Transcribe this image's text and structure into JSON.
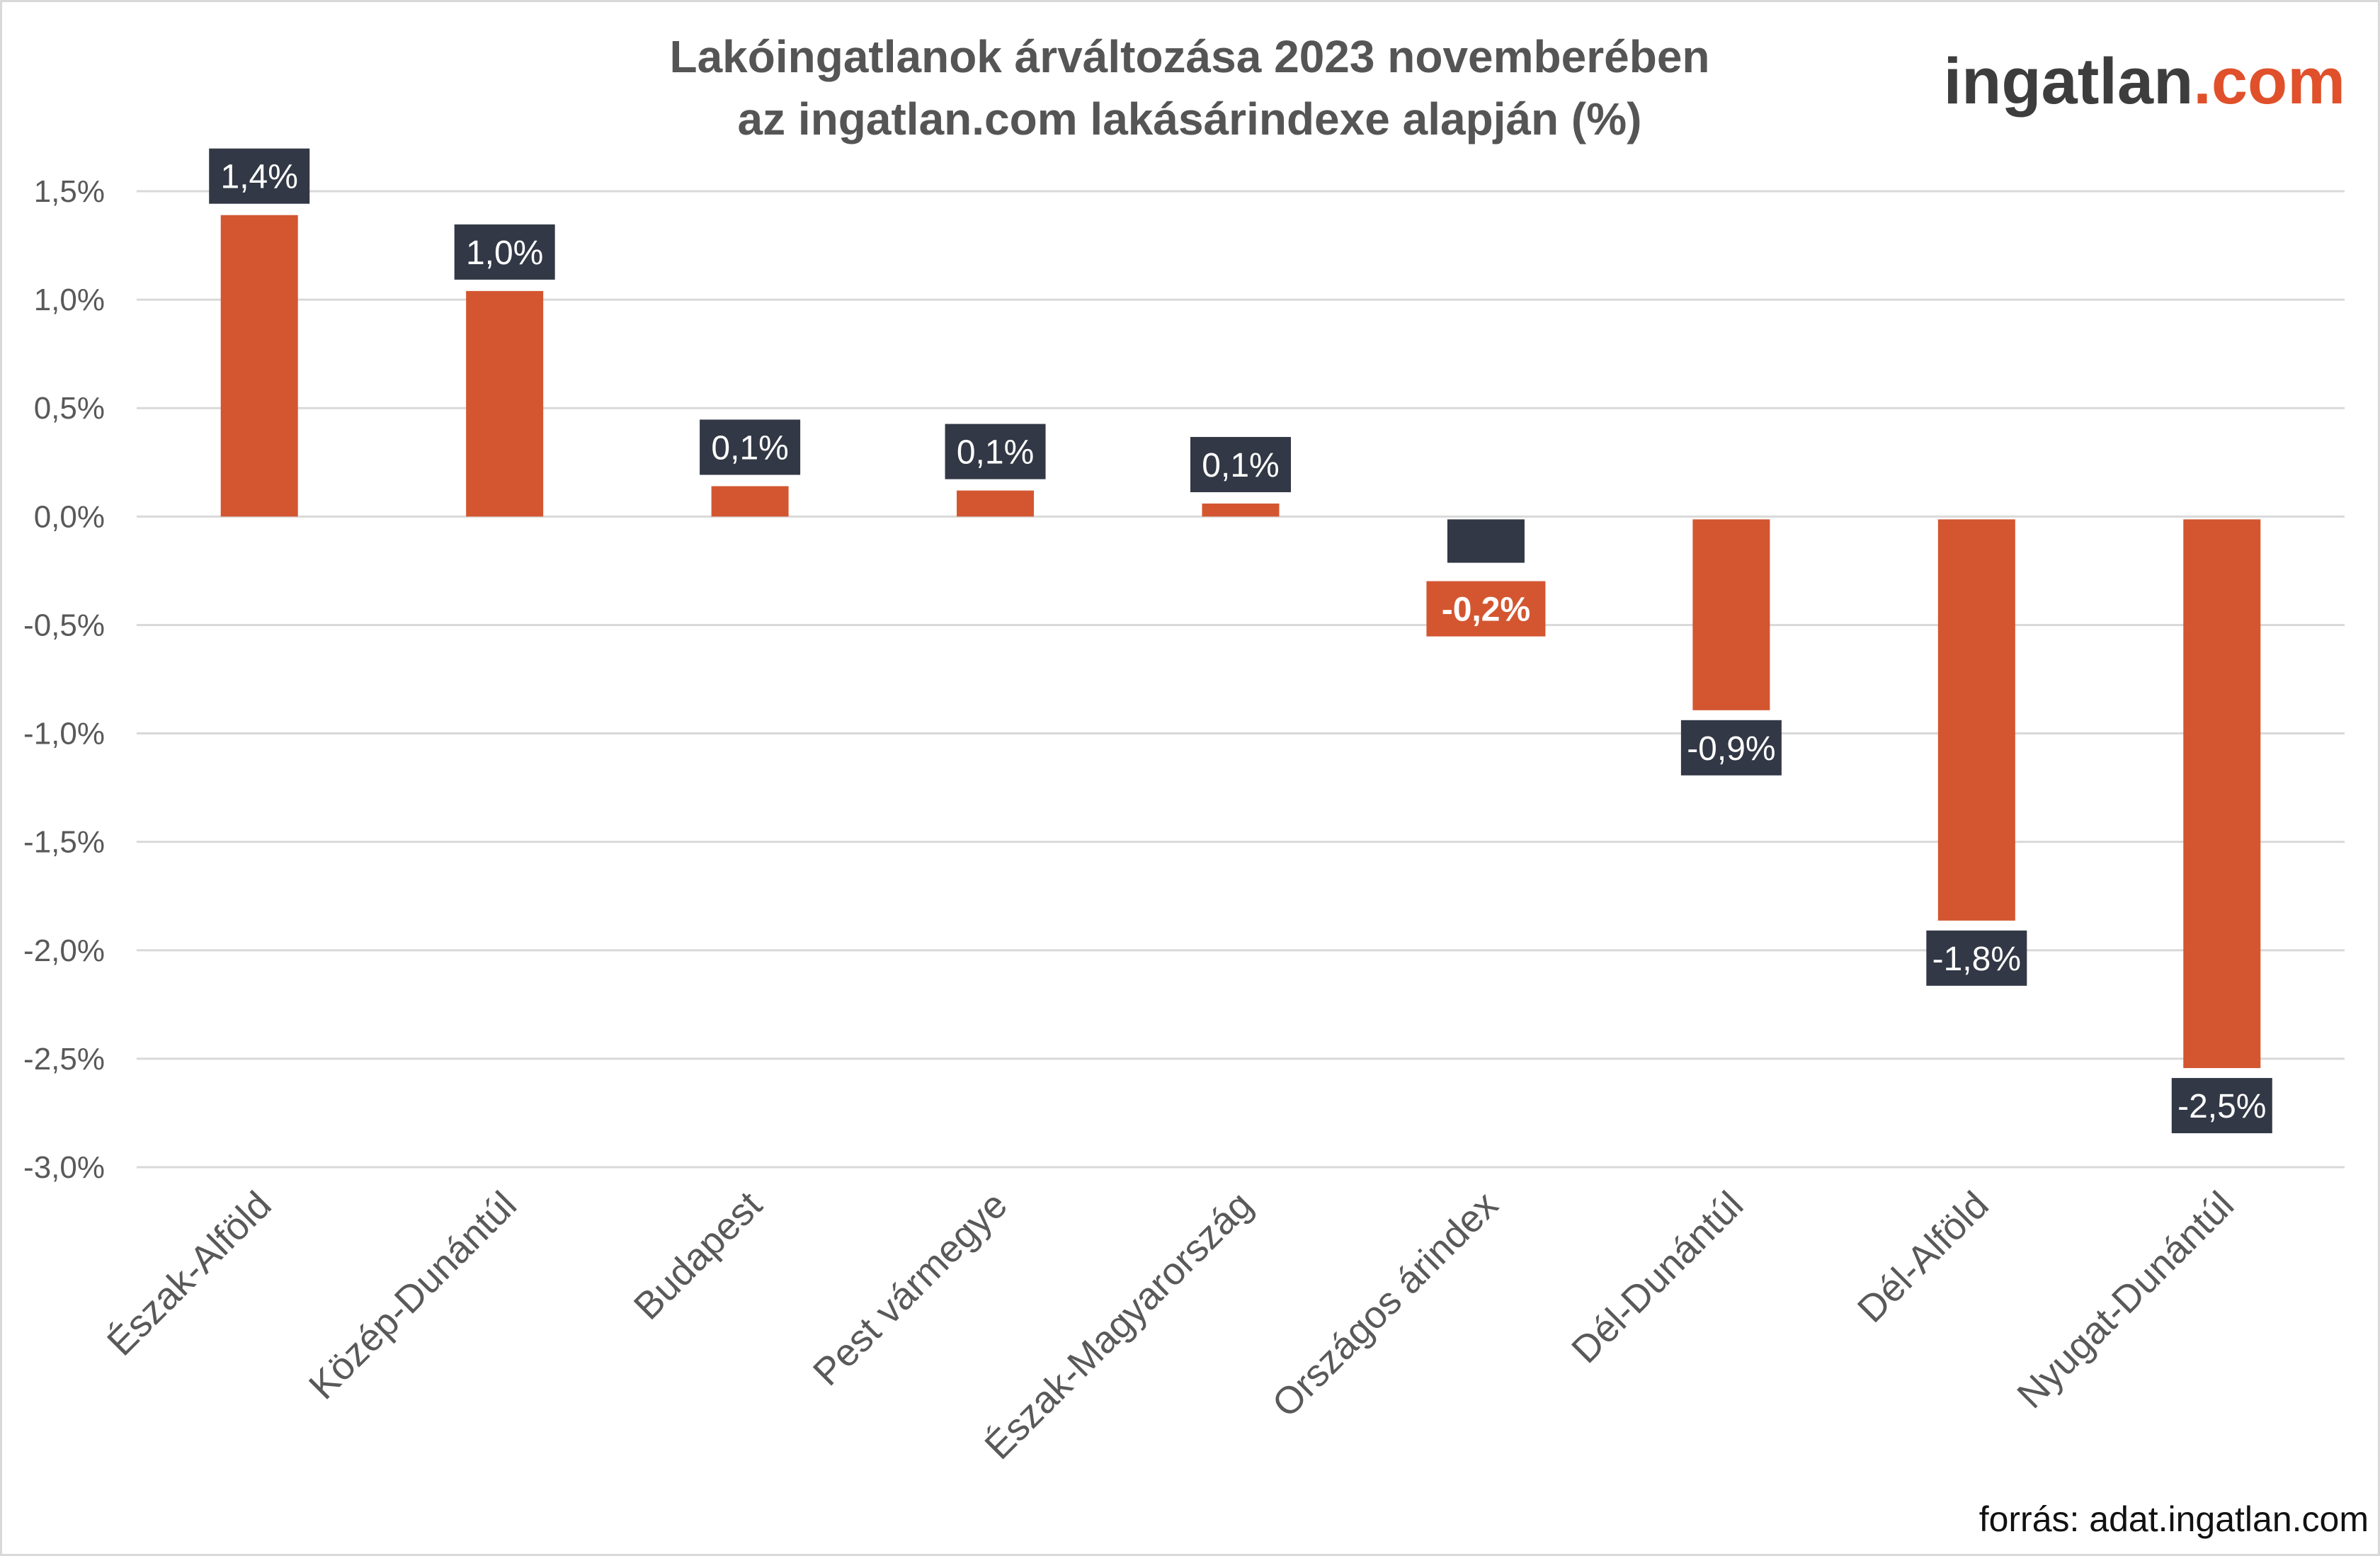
{
  "chart_data": {
    "type": "bar",
    "title": [
      "Lakóingatlanok árváltozása 2023 novemberében",
      "az ingatlan.com lakásárindexe alapján (%)"
    ],
    "xlabel": "",
    "ylabel": "",
    "ylim": [
      -3.0,
      1.5
    ],
    "yticks": [
      1.5,
      1.0,
      0.5,
      0.0,
      -0.5,
      -1.0,
      -1.5,
      -2.0,
      -2.5,
      -3.0
    ],
    "ytick_labels": [
      "1,5%",
      "1,0%",
      "0,5%",
      "0,0%",
      "-0,5%",
      "-1,0%",
      "-1,5%",
      "-2,0%",
      "-2,5%",
      "-3,0%"
    ],
    "grid": true,
    "categories": [
      "Észak-Alföld",
      "Közép-Dunántúl",
      "Budapest",
      "Pest vármegye",
      "Észak-Magyarország",
      "Országos árindex",
      "Dél-Dunántúl",
      "Dél-Alföld",
      "Nyugat-Dunántúl"
    ],
    "values": [
      1.39,
      1.04,
      0.14,
      0.12,
      0.06,
      -0.2,
      -0.88,
      -1.85,
      -2.53
    ],
    "data_labels": [
      "1,4%",
      "1,0%",
      "0,1%",
      "0,1%",
      "0,1%",
      "-0,2%",
      "-0,9%",
      "-1,8%",
      "-2,5%"
    ],
    "highlight_index": 5,
    "colors": {
      "bar": "#d35631",
      "highlight_bar": "#323845",
      "label_bg": "#323845",
      "highlight_label_bg": "#d35631",
      "grid": "#d9d9d9",
      "text": "#595959"
    }
  },
  "logo": {
    "main": "ingatlan",
    "suffix": ".com",
    "main_color": "#3d3d3d",
    "suffix_color": "#e0502a"
  },
  "source": "forrás: adat.ingatlan.com"
}
